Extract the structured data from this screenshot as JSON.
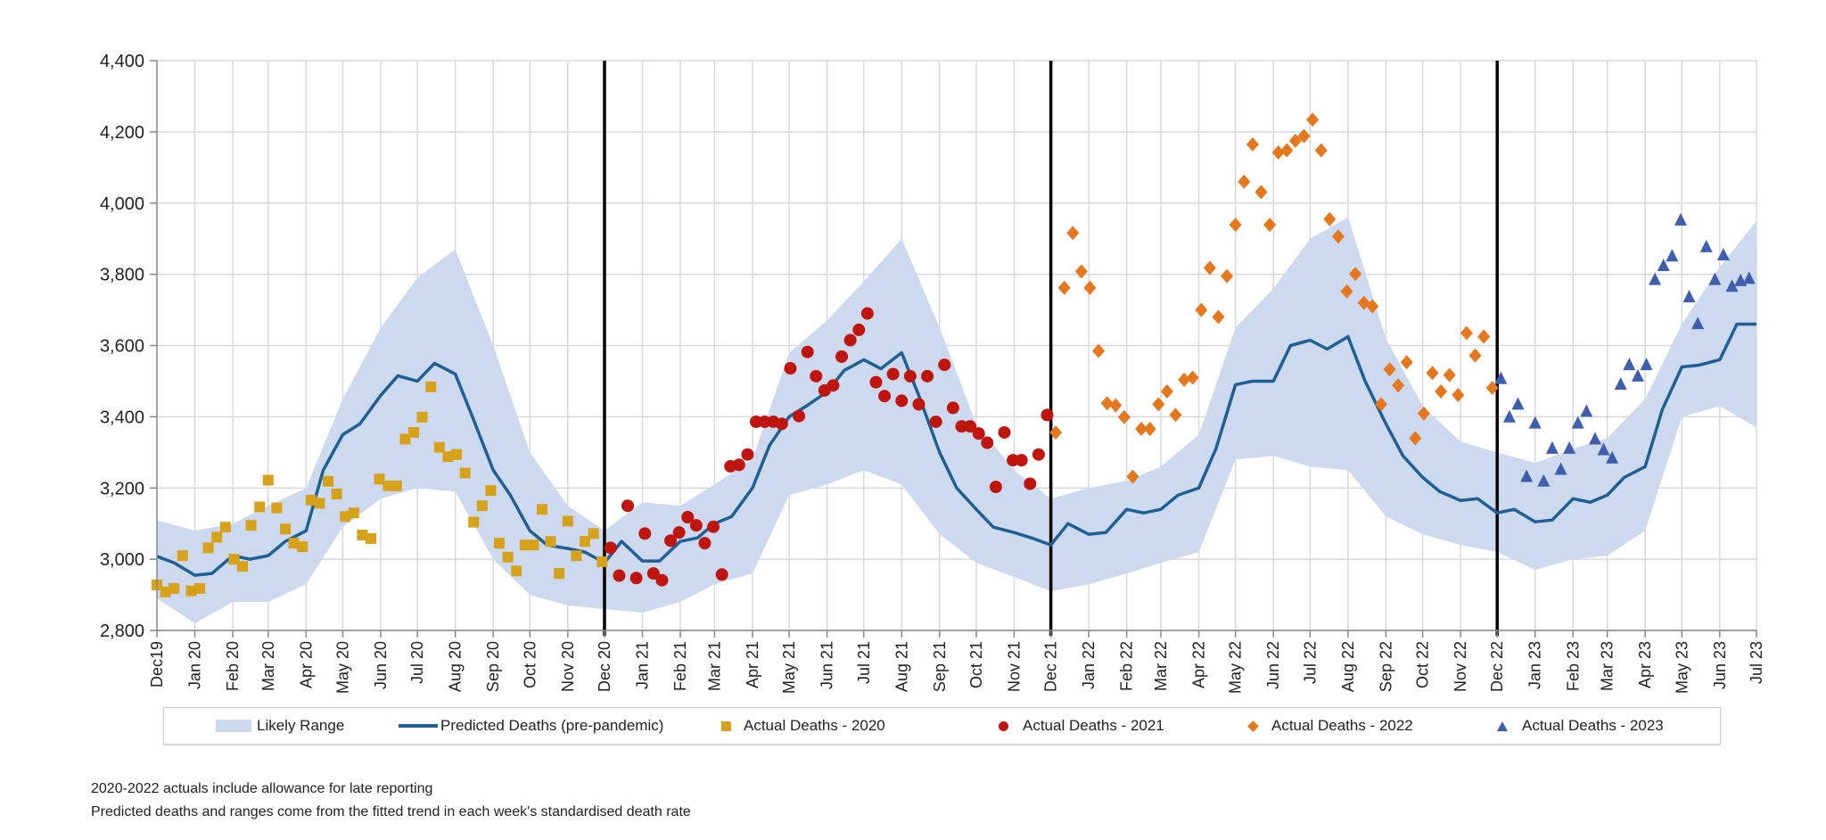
{
  "chart_data": {
    "type": "line+scatter",
    "ylim": [
      2800,
      4400
    ],
    "y_ticks": [
      2800,
      3000,
      3200,
      3400,
      3600,
      3800,
      4000,
      4200,
      4400
    ],
    "y_tick_labels": [
      "2,800",
      "3,000",
      "3,200",
      "3,400",
      "3,600",
      "3,800",
      "4,000",
      "4,200",
      "4,400"
    ],
    "x_range": [
      "2019-12-01",
      "2023-07-01"
    ],
    "x_tick_labels": [
      "Dec19",
      "Jan 20",
      "Feb 20",
      "Mar 20",
      "Apr 20",
      "May 20",
      "Jun 20",
      "Jul 20",
      "Aug 20",
      "Sep 20",
      "Oct 20",
      "Nov 20",
      "Dec 20",
      "Jan 21",
      "Feb 21",
      "Mar 21",
      "Apr 21",
      "May 21",
      "Jun 21",
      "Jul 21",
      "Aug 21",
      "Sep 21",
      "Oct 21",
      "Nov 21",
      "Dec 21",
      "Jan 22",
      "Feb 22",
      "Mar 22",
      "Apr 22",
      "May 22",
      "Jun 22",
      "Jul 22",
      "Aug 22",
      "Sep 22",
      "Oct 22",
      "Nov 22",
      "Dec 22",
      "Jan 23",
      "Feb 23",
      "Mar 23",
      "Apr 23",
      "May 23",
      "Jun 23",
      "Jul 23"
    ],
    "year_dividers": [
      "2020-12-01",
      "2021-12-01",
      "2022-12-01"
    ],
    "grid": true,
    "legend_position": "bottom",
    "colors": {
      "range": "#cdd9ee",
      "predicted": "#1f5f93",
      "2020": "#d6a21c",
      "2021": "#c0150f",
      "2022": "#e5781f",
      "2023": "#3f5fae",
      "divider": "#000000",
      "grid": "#d9d9d9"
    },
    "likely_range": {
      "name": "Likely Range",
      "x": [
        "2019-12-01",
        "2020-01-01",
        "2020-02-01",
        "2020-03-01",
        "2020-04-01",
        "2020-05-01",
        "2020-06-01",
        "2020-07-01",
        "2020-08-01",
        "2020-09-01",
        "2020-10-01",
        "2020-11-01",
        "2020-12-01",
        "2021-01-01",
        "2021-02-01",
        "2021-03-01",
        "2021-04-01",
        "2021-05-01",
        "2021-06-01",
        "2021-07-01",
        "2021-08-01",
        "2021-09-01",
        "2021-10-01",
        "2021-11-01",
        "2021-12-01",
        "2022-01-01",
        "2022-02-01",
        "2022-03-01",
        "2022-04-01",
        "2022-05-01",
        "2022-06-01",
        "2022-07-01",
        "2022-08-01",
        "2022-09-01",
        "2022-10-01",
        "2022-11-01",
        "2022-12-01",
        "2023-01-01",
        "2023-02-01",
        "2023-03-01",
        "2023-04-01",
        "2023-05-01",
        "2023-06-01",
        "2023-07-01"
      ],
      "upper": [
        3110,
        3080,
        3100,
        3150,
        3200,
        3450,
        3650,
        3790,
        3870,
        3600,
        3300,
        3150,
        3080,
        3160,
        3150,
        3210,
        3280,
        3580,
        3670,
        3780,
        3900,
        3650,
        3380,
        3250,
        3170,
        3200,
        3220,
        3260,
        3350,
        3650,
        3760,
        3900,
        3960,
        3620,
        3430,
        3330,
        3300,
        3270,
        3310,
        3340,
        3450,
        3660,
        3820,
        3950
      ],
      "lower": [
        2890,
        2820,
        2880,
        2880,
        2930,
        3090,
        3170,
        3200,
        3190,
        3000,
        2900,
        2870,
        2860,
        2850,
        2880,
        2930,
        2960,
        3180,
        3210,
        3250,
        3210,
        3070,
        2990,
        2950,
        2910,
        2930,
        2960,
        2990,
        3020,
        3280,
        3290,
        3260,
        3250,
        3120,
        3070,
        3040,
        3020,
        2970,
        3000,
        3010,
        3080,
        3400,
        3430,
        3370
      ]
    },
    "predicted": {
      "name": "Predicted Deaths (pre-pandemic)",
      "x": [
        "2019-12-01",
        "2019-12-15",
        "2020-01-01",
        "2020-01-15",
        "2020-02-01",
        "2020-02-15",
        "2020-03-01",
        "2020-03-15",
        "2020-04-01",
        "2020-04-15",
        "2020-05-01",
        "2020-05-15",
        "2020-06-01",
        "2020-06-15",
        "2020-07-01",
        "2020-07-15",
        "2020-08-01",
        "2020-08-15",
        "2020-09-01",
        "2020-09-15",
        "2020-10-01",
        "2020-10-15",
        "2020-11-01",
        "2020-11-15",
        "2020-12-01",
        "2020-12-15",
        "2021-01-01",
        "2021-01-15",
        "2021-02-01",
        "2021-02-15",
        "2021-03-01",
        "2021-03-15",
        "2021-04-01",
        "2021-04-15",
        "2021-05-01",
        "2021-05-15",
        "2021-06-01",
        "2021-06-15",
        "2021-07-01",
        "2021-07-15",
        "2021-08-01",
        "2021-08-15",
        "2021-09-01",
        "2021-09-15",
        "2021-10-01",
        "2021-10-15",
        "2021-11-01",
        "2021-11-15",
        "2021-12-01",
        "2021-12-15",
        "2022-01-01",
        "2022-01-15",
        "2022-02-01",
        "2022-02-15",
        "2022-03-01",
        "2022-03-15",
        "2022-04-01",
        "2022-04-15",
        "2022-05-01",
        "2022-05-15",
        "2022-06-01",
        "2022-06-15",
        "2022-07-01",
        "2022-07-15",
        "2022-08-01",
        "2022-08-15",
        "2022-09-01",
        "2022-09-15",
        "2022-10-01",
        "2022-10-15",
        "2022-11-01",
        "2022-11-15",
        "2022-12-01",
        "2022-12-15",
        "2023-01-01",
        "2023-01-15",
        "2023-02-01",
        "2023-02-15",
        "2023-03-01",
        "2023-03-15",
        "2023-04-01",
        "2023-04-15",
        "2023-05-01",
        "2023-05-15",
        "2023-06-01",
        "2023-06-15",
        "2023-07-01"
      ],
      "y": [
        3008,
        2990,
        2955,
        2960,
        3010,
        3000,
        3010,
        3050,
        3080,
        3250,
        3350,
        3380,
        3460,
        3515,
        3500,
        3550,
        3520,
        3400,
        3250,
        3180,
        3080,
        3040,
        3030,
        3020,
        2990,
        3050,
        2995,
        2995,
        3050,
        3060,
        3100,
        3120,
        3200,
        3320,
        3400,
        3430,
        3470,
        3530,
        3560,
        3535,
        3580,
        3460,
        3300,
        3200,
        3140,
        3090,
        3075,
        3060,
        3040,
        3100,
        3070,
        3075,
        3140,
        3130,
        3140,
        3180,
        3200,
        3310,
        3490,
        3500,
        3500,
        3600,
        3615,
        3590,
        3625,
        3500,
        3380,
        3290,
        3230,
        3190,
        3165,
        3170,
        3130,
        3140,
        3105,
        3110,
        3170,
        3160,
        3180,
        3230,
        3260,
        3420,
        3540,
        3545,
        3560,
        3660,
        3660
      ]
    },
    "actual_series": [
      {
        "name": "Actual Deaths - 2020",
        "marker": "square",
        "x": [
          "2019-12-01",
          "2019-12-08",
          "2019-12-15",
          "2019-12-22",
          "2019-12-29",
          "2020-01-05",
          "2020-01-12",
          "2020-01-19",
          "2020-01-26",
          "2020-02-02",
          "2020-02-09",
          "2020-02-16",
          "2020-02-23",
          "2020-03-01",
          "2020-03-08",
          "2020-03-15",
          "2020-03-22",
          "2020-03-29",
          "2020-04-05",
          "2020-04-12",
          "2020-04-19",
          "2020-04-26",
          "2020-05-03",
          "2020-05-10",
          "2020-05-17",
          "2020-05-24",
          "2020-05-31",
          "2020-06-07",
          "2020-06-14",
          "2020-06-21",
          "2020-06-28",
          "2020-07-05",
          "2020-07-12",
          "2020-07-19",
          "2020-07-26",
          "2020-08-02",
          "2020-08-09",
          "2020-08-16",
          "2020-08-23",
          "2020-08-30",
          "2020-09-06",
          "2020-09-13",
          "2020-09-20",
          "2020-09-27",
          "2020-10-04",
          "2020-10-11",
          "2020-10-18",
          "2020-10-25",
          "2020-11-01",
          "2020-11-08",
          "2020-11-15",
          "2020-11-22",
          "2020-11-29"
        ],
        "y": [
          2928,
          2908,
          2918,
          3010,
          2911,
          2918,
          3032,
          3062,
          3090,
          3000,
          2980,
          3095,
          3147,
          3222,
          3144,
          3085,
          3045,
          3035,
          3166,
          3157,
          3219,
          3183,
          3120,
          3130,
          3068,
          3058,
          3225,
          3206,
          3206,
          3337,
          3356,
          3399,
          3484,
          3314,
          3288,
          3294,
          3242,
          3104,
          3150,
          3193,
          3045,
          3006,
          2967,
          3040,
          3040,
          3140,
          3050,
          2960,
          3107,
          3010,
          3050,
          3072,
          2993
        ]
      },
      {
        "name": "Actual Deaths - 2021",
        "marker": "circle",
        "x": [
          "2020-12-06",
          "2020-12-13",
          "2020-12-20",
          "2020-12-27",
          "2021-01-03",
          "2021-01-10",
          "2021-01-17",
          "2021-01-24",
          "2021-01-31",
          "2021-02-07",
          "2021-02-14",
          "2021-02-21",
          "2021-02-28",
          "2021-03-07",
          "2021-03-14",
          "2021-03-21",
          "2021-03-28",
          "2021-04-04",
          "2021-04-11",
          "2021-04-18",
          "2021-04-25",
          "2021-05-02",
          "2021-05-09",
          "2021-05-16",
          "2021-05-23",
          "2021-05-30",
          "2021-06-06",
          "2021-06-13",
          "2021-06-20",
          "2021-06-27",
          "2021-07-04",
          "2021-07-11",
          "2021-07-18",
          "2021-07-25",
          "2021-08-01",
          "2021-08-08",
          "2021-08-15",
          "2021-08-22",
          "2021-08-29",
          "2021-09-05",
          "2021-09-12",
          "2021-09-19",
          "2021-09-26",
          "2021-10-03",
          "2021-10-10",
          "2021-10-17",
          "2021-10-24",
          "2021-10-31",
          "2021-11-07",
          "2021-11-14",
          "2021-11-21",
          "2021-11-28"
        ],
        "y": [
          3032,
          2954,
          3150,
          2947,
          3072,
          2960,
          2941,
          3052,
          3075,
          3118,
          3095,
          3045,
          3091,
          2957,
          3261,
          3265,
          3294,
          3386,
          3386,
          3386,
          3380,
          3536,
          3402,
          3582,
          3514,
          3474,
          3488,
          3569,
          3615,
          3644,
          3690,
          3497,
          3458,
          3520,
          3445,
          3514,
          3435,
          3514,
          3386,
          3546,
          3425,
          3373,
          3373,
          3353,
          3327,
          3203,
          3356,
          3278,
          3278,
          3212,
          3294,
          3405
        ]
      },
      {
        "name": "Actual Deaths - 2022",
        "marker": "diamond",
        "x": [
          "2021-12-05",
          "2021-12-12",
          "2021-12-19",
          "2021-12-26",
          "2022-01-02",
          "2022-01-09",
          "2022-01-16",
          "2022-01-23",
          "2022-01-30",
          "2022-02-06",
          "2022-02-13",
          "2022-02-20",
          "2022-02-27",
          "2022-03-06",
          "2022-03-13",
          "2022-03-20",
          "2022-03-27",
          "2022-04-03",
          "2022-04-10",
          "2022-04-17",
          "2022-04-24",
          "2022-05-01",
          "2022-05-08",
          "2022-05-15",
          "2022-05-22",
          "2022-05-29",
          "2022-06-05",
          "2022-06-12",
          "2022-06-19",
          "2022-06-26",
          "2022-07-03",
          "2022-07-10",
          "2022-07-17",
          "2022-07-24",
          "2022-07-31",
          "2022-08-07",
          "2022-08-14",
          "2022-08-21",
          "2022-08-28",
          "2022-09-04",
          "2022-09-11",
          "2022-09-18",
          "2022-09-25",
          "2022-10-02",
          "2022-10-09",
          "2022-10-16",
          "2022-10-23",
          "2022-10-30",
          "2022-11-06",
          "2022-11-13",
          "2022-11-20",
          "2022-11-27"
        ],
        "y": [
          3356,
          3762,
          3916,
          3808,
          3762,
          3585,
          3438,
          3432,
          3399,
          3232,
          3366,
          3366,
          3435,
          3471,
          3405,
          3504,
          3510,
          3700,
          3818,
          3680,
          3795,
          3939,
          4060,
          4165,
          4031,
          3939,
          4142,
          4148,
          4175,
          4188,
          4234,
          4148,
          3955,
          3906,
          3752,
          3801,
          3720,
          3710,
          3435,
          3533,
          3488,
          3553,
          3340,
          3409,
          3523,
          3471,
          3517,
          3461,
          3635,
          3572,
          3625,
          3481
        ]
      },
      {
        "name": "Actual Deaths - 2023",
        "marker": "triangle",
        "x": [
          "2022-12-04",
          "2022-12-11",
          "2022-12-18",
          "2022-12-25",
          "2023-01-01",
          "2023-01-08",
          "2023-01-15",
          "2023-01-22",
          "2023-01-29",
          "2023-02-05",
          "2023-02-12",
          "2023-02-19",
          "2023-02-26",
          "2023-03-05",
          "2023-03-12",
          "2023-03-19",
          "2023-03-26",
          "2023-04-02",
          "2023-04-09",
          "2023-04-16",
          "2023-04-23",
          "2023-04-30",
          "2023-05-07",
          "2023-05-14",
          "2023-05-21",
          "2023-05-28",
          "2023-06-04",
          "2023-06-11",
          "2023-06-18",
          "2023-06-25"
        ],
        "y": [
          3507,
          3399,
          3435,
          3232,
          3382,
          3219,
          3311,
          3252,
          3311,
          3382,
          3415,
          3337,
          3307,
          3284,
          3491,
          3546,
          3514,
          3546,
          3785,
          3824,
          3851,
          3952,
          3736,
          3661,
          3877,
          3785,
          3854,
          3766,
          3782,
          3788
        ]
      }
    ]
  },
  "legend": {
    "range": "Likely Range",
    "predicted": "Predicted Deaths (pre-pandemic)",
    "a2020": "Actual Deaths - 2020",
    "a2021": "Actual Deaths - 2021",
    "a2022": "Actual Deaths - 2022",
    "a2023": "Actual Deaths - 2023"
  },
  "notes": {
    "line1": "2020-2022  actuals include allowance for late reporting",
    "line2": "Predicted deaths and ranges come from the fitted trend in each week's standardised death rate"
  }
}
